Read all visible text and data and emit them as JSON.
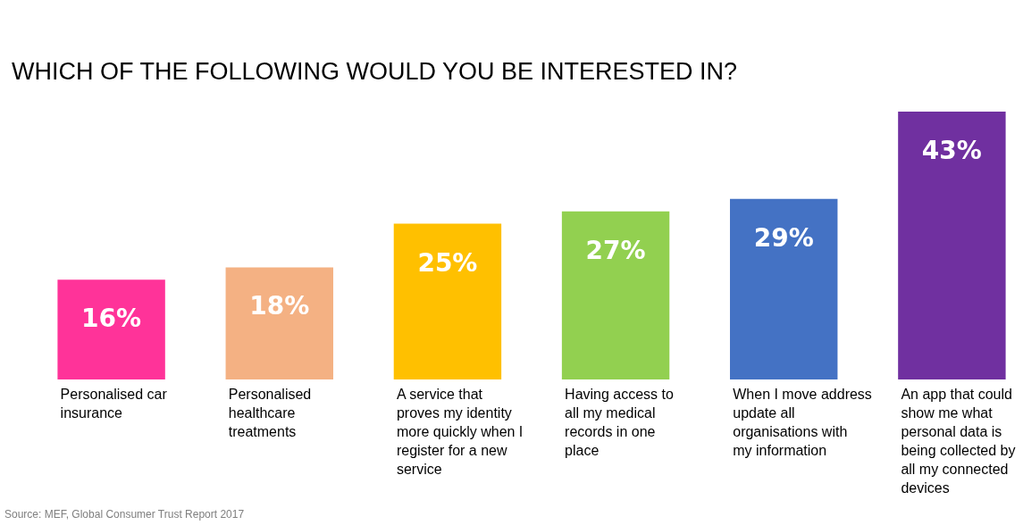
{
  "chart_data": {
    "type": "bar",
    "title": "WHICH OF THE FOLLOWING WOULD YOU BE INTERESTED IN?",
    "categories": [
      "Personalised car insurance",
      "Personalised healthcare treatments",
      "A service that proves my identity more quickly when I register for a new service",
      "Having access to all my medical records in one place",
      "When I move address update all organisations with my information",
      "An app that could show me what personal data is being collected by all my connected devices"
    ],
    "values": [
      16,
      18,
      25,
      27,
      29,
      43
    ],
    "colors": [
      "#ff3399",
      "#f4b183",
      "#ffc000",
      "#92d050",
      "#4472c4",
      "#7030a0"
    ],
    "value_labels": [
      "16%",
      "18%",
      "25%",
      "27%",
      "29%",
      "43%"
    ],
    "annotations": [
      "Source: MEF, Global Consumer Trust Report 2017"
    ]
  }
}
